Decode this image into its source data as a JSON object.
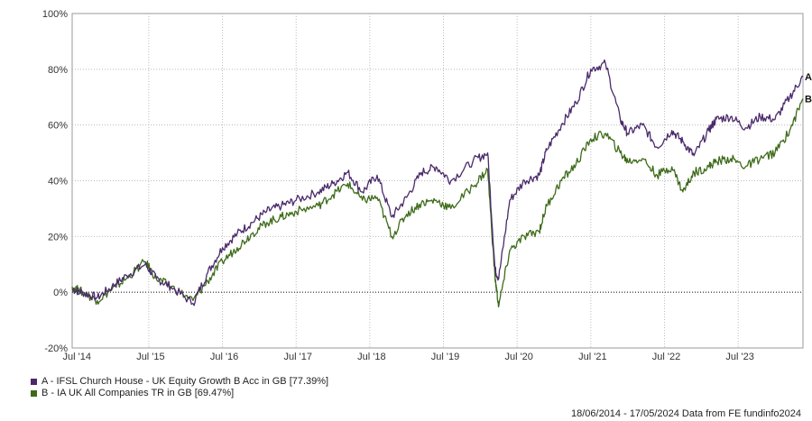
{
  "chart_data": {
    "type": "line",
    "y_ticks": [
      "100%",
      "80%",
      "60%",
      "40%",
      "20%",
      "0%",
      "-20%"
    ],
    "x_ticks": [
      "Jul '14",
      "Jul '15",
      "Jul '16",
      "Jul '17",
      "Jul '18",
      "Jul '19",
      "Jul '20",
      "Jul '21",
      "Jul '22",
      "Jul '23"
    ],
    "ylim": [
      -20,
      100
    ],
    "grid": true,
    "series": [
      {
        "name": "A - IFSL Church House - UK Equity Growth B Acc in GB [77.39%]",
        "end_label": "A",
        "color": "#4b2a6b",
        "x": [
          2014.46,
          2014.6,
          2014.8,
          2015.0,
          2015.2,
          2015.45,
          2015.6,
          2015.8,
          2016.1,
          2016.3,
          2016.5,
          2016.7,
          2016.9,
          2017.1,
          2017.3,
          2017.5,
          2017.8,
          2018.0,
          2018.2,
          2018.4,
          2018.6,
          2018.8,
          2019.0,
          2019.2,
          2019.4,
          2019.6,
          2019.9,
          2020.1,
          2020.2,
          2020.25,
          2020.4,
          2020.6,
          2020.8,
          2020.9,
          2021.1,
          2021.3,
          2021.5,
          2021.7,
          2021.9,
          2022.0,
          2022.2,
          2022.4,
          2022.6,
          2022.75,
          2022.9,
          2023.1,
          2023.2,
          2023.4,
          2023.6,
          2023.8,
          2024.0,
          2024.2,
          2024.38
        ],
        "values": [
          1,
          0,
          -2,
          2,
          6,
          10,
          5,
          2,
          -4,
          7,
          16,
          21,
          25,
          29,
          31,
          33,
          36,
          39,
          43,
          36,
          42,
          27,
          34,
          43,
          45,
          40,
          47,
          50,
          8,
          5,
          33,
          40,
          42,
          51,
          60,
          68,
          80,
          82,
          62,
          57,
          60,
          52,
          58,
          54,
          49,
          58,
          62,
          63,
          59,
          63,
          62,
          70,
          77.39
        ]
      },
      {
        "name": "B - IA UK All Companies TR in GB [69.47%]",
        "end_label": "B",
        "color": "#3d6b1a",
        "x": [
          2014.46,
          2014.6,
          2014.8,
          2015.0,
          2015.2,
          2015.45,
          2015.6,
          2015.8,
          2016.1,
          2016.3,
          2016.5,
          2016.7,
          2016.9,
          2017.1,
          2017.3,
          2017.5,
          2017.8,
          2018.0,
          2018.2,
          2018.4,
          2018.6,
          2018.8,
          2019.0,
          2019.2,
          2019.4,
          2019.6,
          2019.9,
          2020.1,
          2020.2,
          2020.25,
          2020.4,
          2020.6,
          2020.8,
          2020.9,
          2021.1,
          2021.3,
          2021.5,
          2021.7,
          2021.9,
          2022.0,
          2022.2,
          2022.4,
          2022.6,
          2022.75,
          2022.9,
          2023.1,
          2023.2,
          2023.4,
          2023.6,
          2023.8,
          2024.0,
          2024.2,
          2024.38
        ],
        "values": [
          2,
          0,
          -3,
          1,
          5,
          11,
          5,
          2,
          -3,
          4,
          11,
          16,
          21,
          25,
          27,
          29,
          31,
          35,
          39,
          33,
          34,
          20,
          28,
          32,
          33,
          30,
          38,
          44,
          5,
          -5,
          15,
          20,
          22,
          31,
          40,
          46,
          55,
          57,
          50,
          47,
          48,
          42,
          45,
          36,
          43,
          45,
          47,
          48,
          45,
          48,
          50,
          58,
          69.47
        ]
      }
    ]
  },
  "legend": {
    "a": "A - IFSL Church House - UK Equity Growth B Acc in GB [77.39%]",
    "b": "B - IA UK All Companies TR in GB [69.47%]"
  },
  "footer": "18/06/2014 - 17/05/2024 Data from FE fundinfo2024"
}
